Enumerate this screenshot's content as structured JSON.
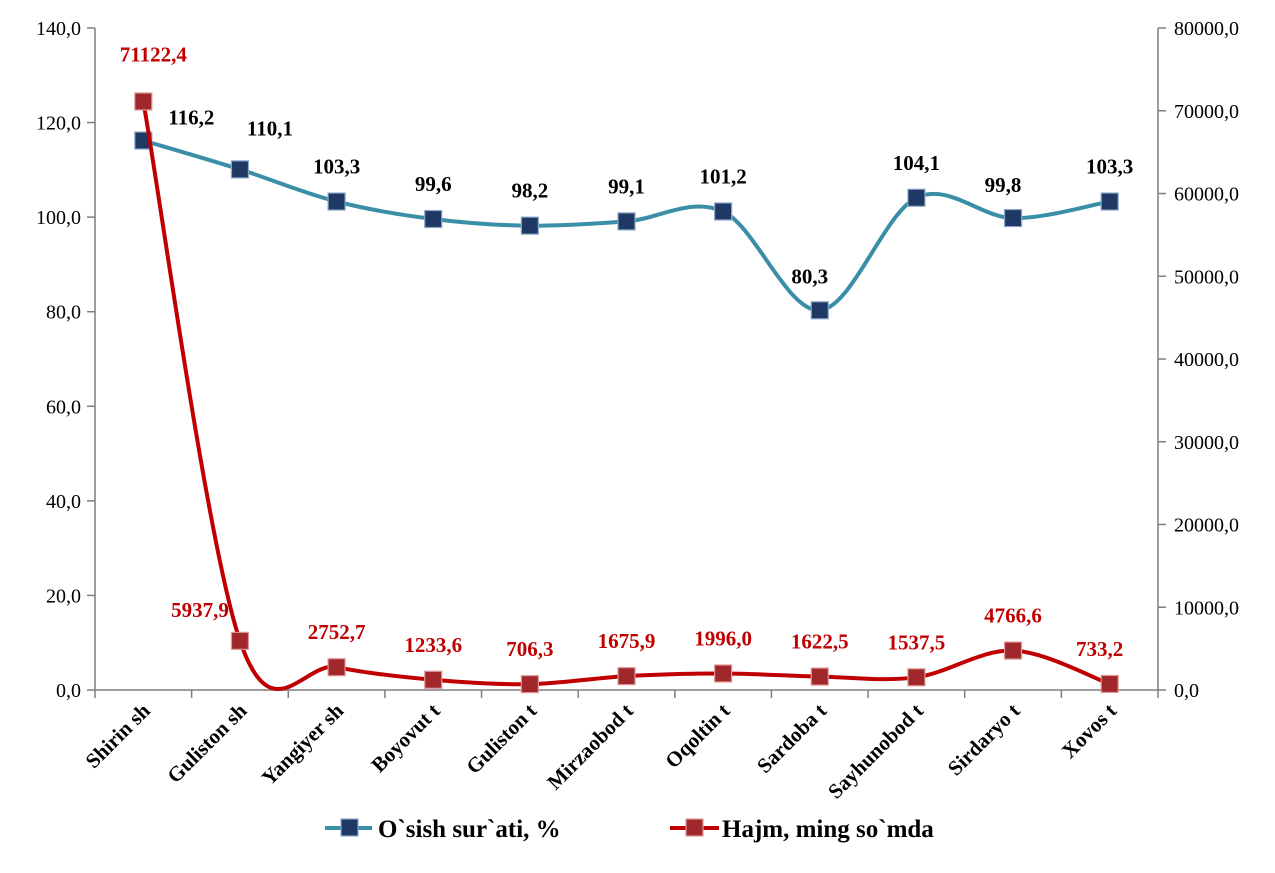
{
  "chart_data": {
    "type": "line",
    "categories": [
      "Shirin sh",
      "Guliston sh",
      "Yangiyer sh",
      "Boyovut t",
      "Guliston t",
      "Mirzaobod t",
      "Oqoltin t",
      "Sardoba t",
      "Sayhunobod t",
      "Sirdaryo t",
      "Xovos t"
    ],
    "y_left": {
      "range": [
        0,
        140
      ],
      "ticks": [
        "0,0",
        "20,0",
        "40,0",
        "60,0",
        "80,0",
        "100,0",
        "120,0",
        "140,0"
      ]
    },
    "y_right": {
      "range": [
        0,
        80000
      ],
      "ticks": [
        "0,0",
        "10000,0",
        "20000,0",
        "30000,0",
        "40000,0",
        "50000,0",
        "60000,0",
        "70000,0",
        "80000,0"
      ]
    },
    "series": [
      {
        "name": "O`sish sur`ati, %",
        "axis": "left",
        "color": "#3a8ea8",
        "marker_color": "#1f3864",
        "values": [
          116.2,
          110.1,
          103.3,
          99.6,
          98.2,
          99.1,
          101.2,
          80.3,
          104.1,
          99.8,
          103.3
        ],
        "labels": [
          "116,2",
          "110,1",
          "103,3",
          "99,6",
          "98,2",
          "99,1",
          "101,2",
          "80,3",
          "104,1",
          "99,8",
          "103,3"
        ]
      },
      {
        "name": "Hajm, ming so`mda",
        "axis": "right",
        "color": "#c00000",
        "marker_color": "#a0282b",
        "values": [
          71122.4,
          5937.9,
          2752.7,
          1233.6,
          706.3,
          1675.9,
          1996.0,
          1622.5,
          1537.5,
          4766.6,
          733.2
        ],
        "labels": [
          "71122,4",
          "5937,9",
          "2752,7",
          "1233,6",
          "706,3",
          "1675,9",
          "1996,0",
          "1622,5",
          "1537,5",
          "4766,6",
          "733,2"
        ]
      }
    ],
    "grid": false,
    "legend_position": "bottom"
  }
}
